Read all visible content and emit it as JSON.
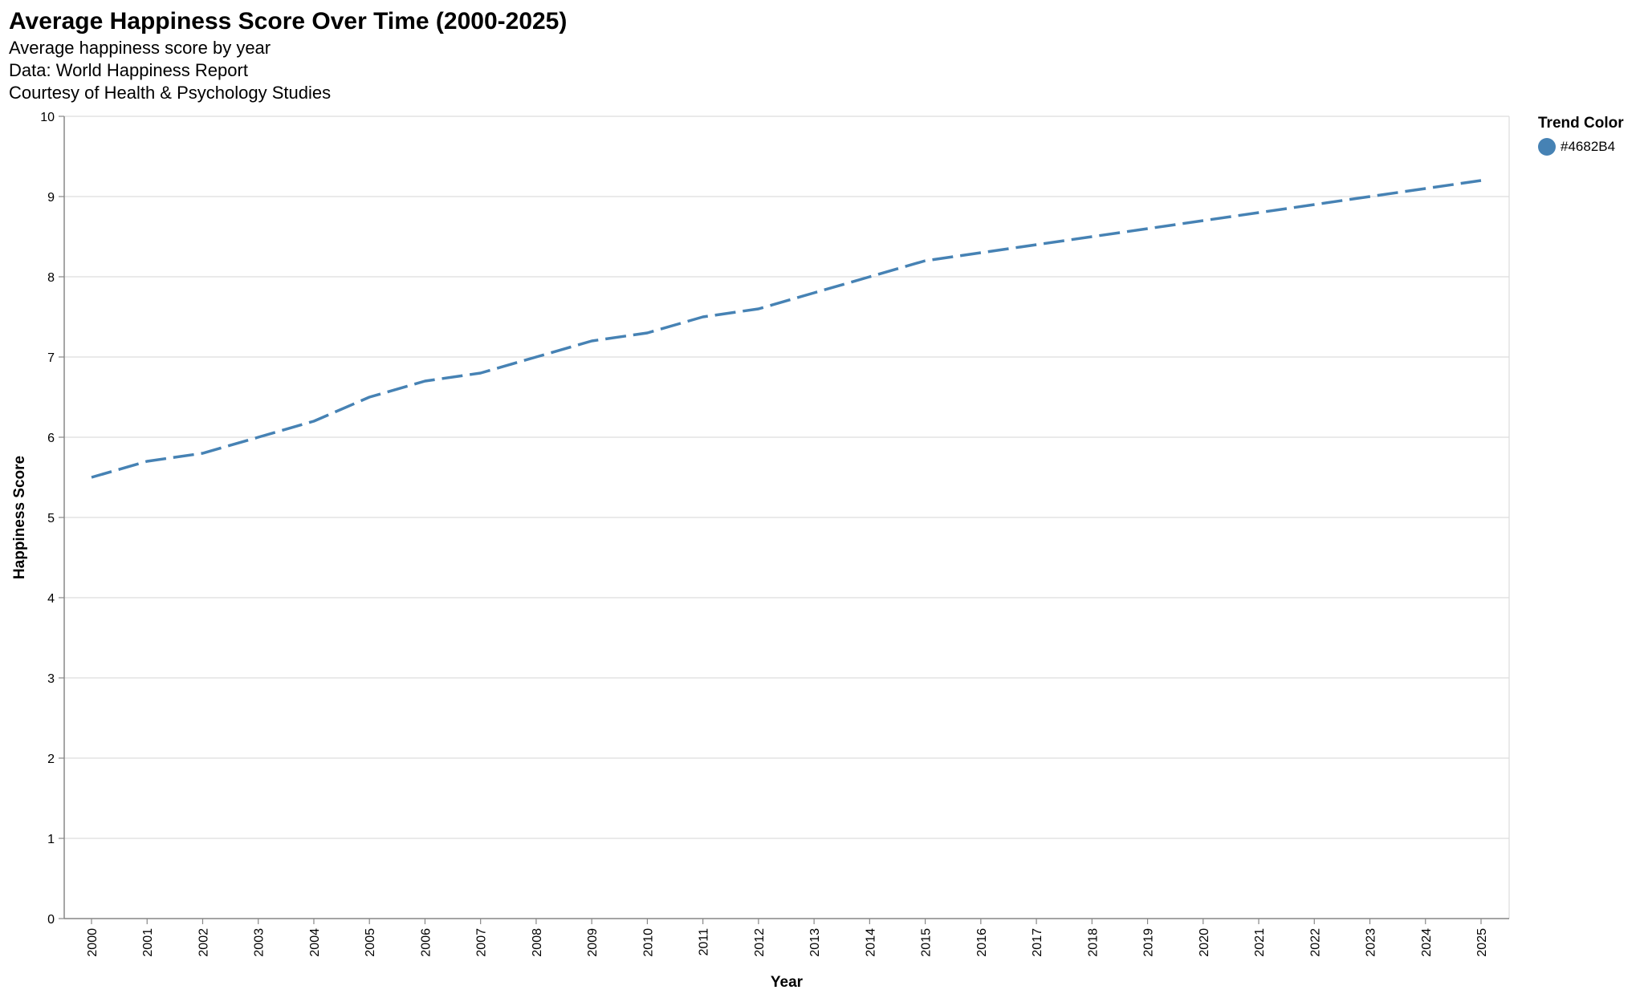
{
  "header": {
    "title": "Average Happiness Score Over Time (2000-2025)",
    "subtitle_lines": [
      "Average happiness score by year",
      "Data: World Happiness Report",
      "Courtesy of Health & Psychology Studies"
    ]
  },
  "legend": {
    "title": "Trend Color",
    "label": "#4682B4"
  },
  "colors": {
    "series": "#4682B4",
    "grid": "#dddddd",
    "axis": "#888888"
  },
  "chart_data": {
    "type": "line",
    "title": "Average Happiness Score Over Time (2000-2025)",
    "xlabel": "Year",
    "ylabel": "Happiness Score",
    "ylim": [
      0,
      10
    ],
    "yticks": [
      0,
      1,
      2,
      3,
      4,
      5,
      6,
      7,
      8,
      9,
      10
    ],
    "grid": true,
    "line_style": "dashed",
    "legend_position": "top-right",
    "x": [
      "2000",
      "2001",
      "2002",
      "2003",
      "2004",
      "2005",
      "2006",
      "2007",
      "2008",
      "2009",
      "2010",
      "2011",
      "2012",
      "2013",
      "2014",
      "2015",
      "2016",
      "2017",
      "2018",
      "2019",
      "2020",
      "2021",
      "2022",
      "2023",
      "2024",
      "2025"
    ],
    "series": [
      {
        "name": "#4682B4",
        "values": [
          5.5,
          5.7,
          5.8,
          6.0,
          6.2,
          6.5,
          6.7,
          6.8,
          7.0,
          7.2,
          7.3,
          7.5,
          7.6,
          7.8,
          8.0,
          8.2,
          8.3,
          8.4,
          8.5,
          8.6,
          8.7,
          8.8,
          8.9,
          9.0,
          9.1,
          9.2
        ]
      }
    ]
  }
}
